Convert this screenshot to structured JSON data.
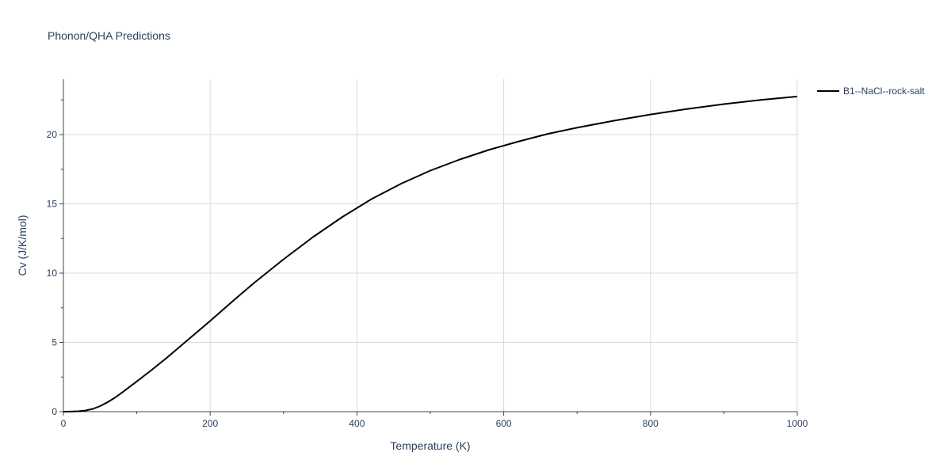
{
  "chart_data": {
    "type": "line",
    "title": "Phonon/QHA Predictions",
    "xlabel": "Temperature (K)",
    "ylabel": "Cv (J/K/mol)",
    "xlim": [
      0,
      1000
    ],
    "ylim": [
      0,
      24
    ],
    "xticks": [
      0,
      200,
      400,
      600,
      800,
      1000
    ],
    "yticks": [
      0,
      5,
      10,
      15,
      20
    ],
    "grid": true,
    "legend_position": "top-right",
    "series": [
      {
        "name": "B1--NaCl--rock-salt",
        "color": "#000000",
        "x": [
          0,
          10,
          20,
          30,
          40,
          50,
          60,
          70,
          80,
          90,
          100,
          120,
          140,
          160,
          180,
          200,
          220,
          240,
          260,
          280,
          300,
          340,
          380,
          420,
          460,
          500,
          540,
          580,
          620,
          660,
          700,
          750,
          800,
          850,
          900,
          950,
          1000
        ],
        "y": [
          0,
          0.01,
          0.03,
          0.08,
          0.2,
          0.4,
          0.68,
          1.0,
          1.38,
          1.78,
          2.18,
          3.0,
          3.85,
          4.75,
          5.65,
          6.55,
          7.48,
          8.4,
          9.3,
          10.15,
          11.0,
          12.6,
          14.05,
          15.35,
          16.45,
          17.4,
          18.2,
          18.9,
          19.5,
          20.05,
          20.5,
          21.0,
          21.45,
          21.85,
          22.2,
          22.5,
          22.75
        ]
      }
    ]
  }
}
